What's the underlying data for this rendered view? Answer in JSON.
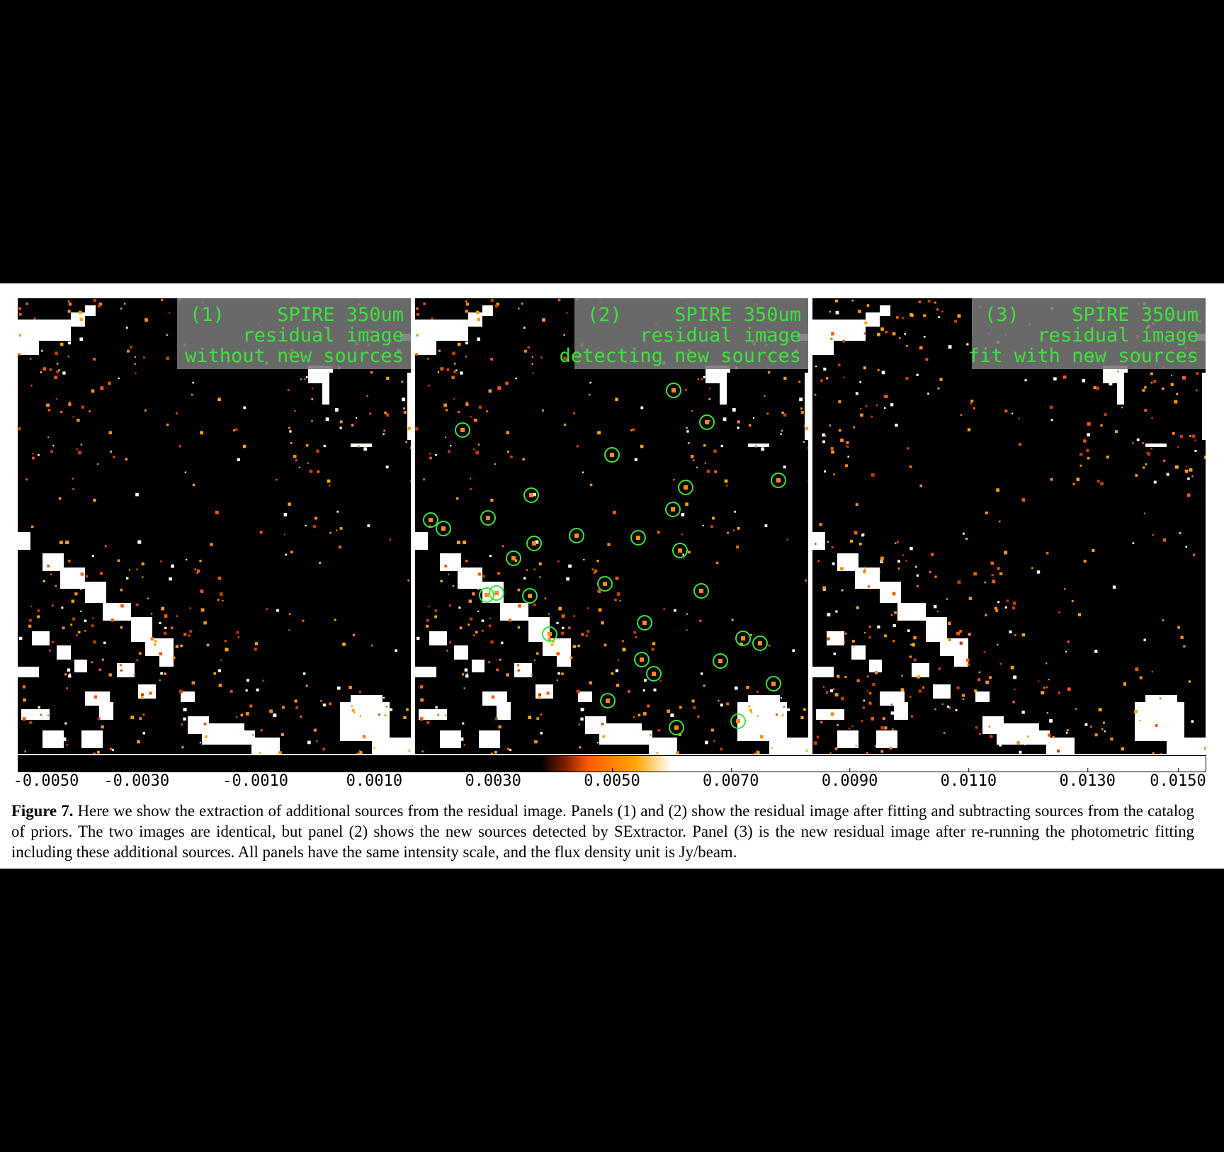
{
  "figure": {
    "caption_label": "Figure 7.",
    "caption_text": "Here we show the extraction of additional sources from the residual image. Panels (1) and (2) show the residual image after fitting and subtracting sources from the catalog of priors. The two images are identical, but panel (2) shows the new sources detected by SExtractor. Panel (3) is the new residual image after re-running the photometric fitting including these additional sources. All panels have the same intensity scale, and the flux density unit is Jy/beam."
  },
  "panels": [
    {
      "number": "(1)",
      "line1": "SPIRE 350um",
      "line2": "residual image",
      "line3": "without new sources"
    },
    {
      "number": "(2)",
      "line1": "SPIRE 350um",
      "line2": "residual image",
      "line3": "detecting new sources"
    },
    {
      "number": "(3)",
      "line1": "SPIRE 350um",
      "line2": "residual image",
      "line3": "fit with new sources"
    }
  ],
  "colorbar": {
    "ticks": [
      "-0.0050",
      "-0.0030",
      "-0.0010",
      "0.0010",
      "0.0030",
      "0.0050",
      "0.0070",
      "0.0090",
      "0.0110",
      "0.0130",
      "0.0150"
    ],
    "min": -0.005,
    "max": 0.015,
    "colors": {
      "low": "#000000",
      "mid": "#ff5a00",
      "high": "#ffffff"
    }
  },
  "colors": {
    "label_text": "#3de23d",
    "circle": "#3de23d",
    "label_bg": "#787878"
  }
}
